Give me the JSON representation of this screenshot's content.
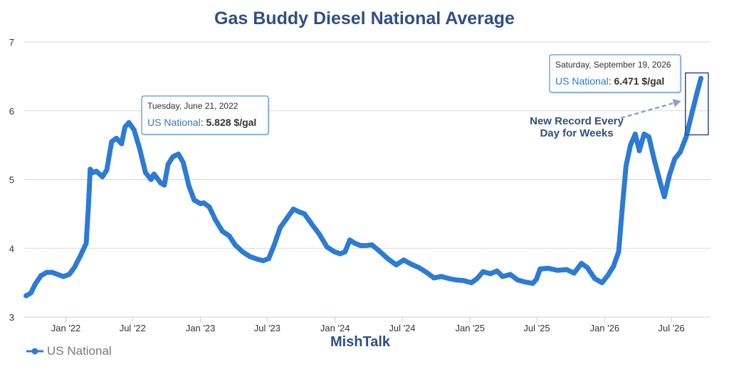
{
  "colors": {
    "series": "#2c7bd4",
    "title": "#2f4f86",
    "grid": "#d8d8d8",
    "annotation_arrow": "#8fa3c4"
  },
  "chart_data": {
    "type": "line",
    "title": "Gas Buddy Diesel National Average",
    "credit": "MishTalk",
    "xlabel": "",
    "ylabel": "",
    "ylim": [
      3,
      7
    ],
    "yticks": [
      "3",
      "4",
      "5",
      "6",
      "7"
    ],
    "xlim": [
      "2021-09-10",
      "2026-10-15"
    ],
    "xticks": [
      {
        "date": "2022-01-01",
        "label": "Jan '22"
      },
      {
        "date": "2022-07-01",
        "label": "Jul '22"
      },
      {
        "date": "2023-01-01",
        "label": "Jan '23"
      },
      {
        "date": "2023-07-01",
        "label": "Jul '23"
      },
      {
        "date": "2024-01-01",
        "label": "Jan '24"
      },
      {
        "date": "2024-07-01",
        "label": "Jul '24"
      },
      {
        "date": "2025-01-01",
        "label": "Jan '25"
      },
      {
        "date": "2025-07-01",
        "label": "Jul '25"
      },
      {
        "date": "2026-01-01",
        "label": "Jan '26"
      },
      {
        "date": "2026-07-01",
        "label": "Jul '26"
      }
    ],
    "grid": true,
    "legend_position": "bottom-left",
    "series": [
      {
        "name": "US National",
        "color": "#2c7bd4",
        "points": [
          [
            "2021-09-15",
            3.31
          ],
          [
            "2021-09-28",
            3.35
          ],
          [
            "2021-10-10",
            3.48
          ],
          [
            "2021-10-25",
            3.6
          ],
          [
            "2021-11-10",
            3.65
          ],
          [
            "2021-11-25",
            3.65
          ],
          [
            "2021-12-10",
            3.62
          ],
          [
            "2021-12-25",
            3.59
          ],
          [
            "2022-01-10",
            3.62
          ],
          [
            "2022-01-25",
            3.73
          ],
          [
            "2022-02-10",
            3.9
          ],
          [
            "2022-02-25",
            4.07
          ],
          [
            "2022-03-03",
            4.6
          ],
          [
            "2022-03-08",
            5.15
          ],
          [
            "2022-03-15",
            5.1
          ],
          [
            "2022-03-25",
            5.12
          ],
          [
            "2022-04-10",
            5.04
          ],
          [
            "2022-04-22",
            5.14
          ],
          [
            "2022-05-05",
            5.55
          ],
          [
            "2022-05-18",
            5.6
          ],
          [
            "2022-06-01",
            5.52
          ],
          [
            "2022-06-10",
            5.76
          ],
          [
            "2022-06-21",
            5.828
          ],
          [
            "2022-07-05",
            5.72
          ],
          [
            "2022-07-20",
            5.45
          ],
          [
            "2022-08-05",
            5.1
          ],
          [
            "2022-08-20",
            5.0
          ],
          [
            "2022-08-28",
            5.08
          ],
          [
            "2022-09-15",
            4.95
          ],
          [
            "2022-09-25",
            4.92
          ],
          [
            "2022-10-05",
            5.22
          ],
          [
            "2022-10-18",
            5.33
          ],
          [
            "2022-11-02",
            5.37
          ],
          [
            "2022-11-15",
            5.25
          ],
          [
            "2022-12-01",
            4.9
          ],
          [
            "2022-12-15",
            4.7
          ],
          [
            "2023-01-01",
            4.65
          ],
          [
            "2023-01-10",
            4.66
          ],
          [
            "2023-01-25",
            4.6
          ],
          [
            "2023-02-10",
            4.42
          ],
          [
            "2023-03-01",
            4.25
          ],
          [
            "2023-03-20",
            4.18
          ],
          [
            "2023-04-05",
            4.05
          ],
          [
            "2023-04-25",
            3.95
          ],
          [
            "2023-05-15",
            3.88
          ],
          [
            "2023-06-05",
            3.84
          ],
          [
            "2023-06-20",
            3.82
          ],
          [
            "2023-07-05",
            3.85
          ],
          [
            "2023-07-20",
            4.05
          ],
          [
            "2023-08-05",
            4.3
          ],
          [
            "2023-08-25",
            4.45
          ],
          [
            "2023-09-10",
            4.57
          ],
          [
            "2023-09-25",
            4.53
          ],
          [
            "2023-10-10",
            4.5
          ],
          [
            "2023-10-30",
            4.35
          ],
          [
            "2023-11-20",
            4.2
          ],
          [
            "2023-12-10",
            4.02
          ],
          [
            "2023-12-30",
            3.95
          ],
          [
            "2024-01-15",
            3.92
          ],
          [
            "2024-01-28",
            3.95
          ],
          [
            "2024-02-10",
            4.12
          ],
          [
            "2024-02-25",
            4.07
          ],
          [
            "2024-03-10",
            4.04
          ],
          [
            "2024-03-25",
            4.04
          ],
          [
            "2024-04-10",
            4.05
          ],
          [
            "2024-04-30",
            3.96
          ],
          [
            "2024-05-25",
            3.84
          ],
          [
            "2024-06-15",
            3.76
          ],
          [
            "2024-07-05",
            3.83
          ],
          [
            "2024-07-25",
            3.77
          ],
          [
            "2024-08-15",
            3.72
          ],
          [
            "2024-09-05",
            3.65
          ],
          [
            "2024-09-25",
            3.57
          ],
          [
            "2024-10-15",
            3.59
          ],
          [
            "2024-11-05",
            3.56
          ],
          [
            "2024-11-25",
            3.54
          ],
          [
            "2024-12-15",
            3.53
          ],
          [
            "2025-01-05",
            3.5
          ],
          [
            "2025-01-20",
            3.56
          ],
          [
            "2025-02-05",
            3.66
          ],
          [
            "2025-02-25",
            3.63
          ],
          [
            "2025-03-15",
            3.67
          ],
          [
            "2025-03-30",
            3.59
          ],
          [
            "2025-04-20",
            3.62
          ],
          [
            "2025-05-10",
            3.54
          ],
          [
            "2025-05-30",
            3.51
          ],
          [
            "2025-06-20",
            3.49
          ],
          [
            "2025-06-30",
            3.55
          ],
          [
            "2025-07-10",
            3.7
          ],
          [
            "2025-08-01",
            3.71
          ],
          [
            "2025-08-25",
            3.68
          ],
          [
            "2025-09-20",
            3.69
          ],
          [
            "2025-10-10",
            3.64
          ],
          [
            "2025-10-30",
            3.78
          ],
          [
            "2025-11-15",
            3.72
          ],
          [
            "2025-12-05",
            3.56
          ],
          [
            "2025-12-25",
            3.5
          ],
          [
            "2026-01-10",
            3.61
          ],
          [
            "2026-01-25",
            3.74
          ],
          [
            "2026-02-08",
            3.95
          ],
          [
            "2026-02-18",
            4.6
          ],
          [
            "2026-02-28",
            5.2
          ],
          [
            "2026-03-12",
            5.5
          ],
          [
            "2026-03-25",
            5.66
          ],
          [
            "2026-04-05",
            5.42
          ],
          [
            "2026-04-18",
            5.66
          ],
          [
            "2026-05-01",
            5.62
          ],
          [
            "2026-05-15",
            5.3
          ],
          [
            "2026-06-01",
            4.95
          ],
          [
            "2026-06-12",
            4.75
          ],
          [
            "2026-06-25",
            5.05
          ],
          [
            "2026-07-10",
            5.3
          ],
          [
            "2026-07-25",
            5.4
          ],
          [
            "2026-08-10",
            5.62
          ],
          [
            "2026-08-25",
            5.95
          ],
          [
            "2026-09-08",
            6.25
          ],
          [
            "2026-09-19",
            6.471
          ]
        ]
      }
    ],
    "tooltips": [
      {
        "date_label": "Tuesday, June 21, 2022",
        "series": "US National",
        "value": "5.828 $/gal",
        "x": "2022-06-21",
        "y": 5.828
      },
      {
        "date_label": "Saturday, September 19, 2026",
        "series": "US National",
        "value": "6.471 $/gal",
        "x": "2026-09-19",
        "y": 6.471
      }
    ],
    "annotation": {
      "lines": [
        "New Record Every",
        "Day for Weeks"
      ],
      "highlight_x": [
        "2026-08-08",
        "2026-10-09"
      ],
      "highlight_y": [
        5.65,
        6.55
      ]
    }
  }
}
